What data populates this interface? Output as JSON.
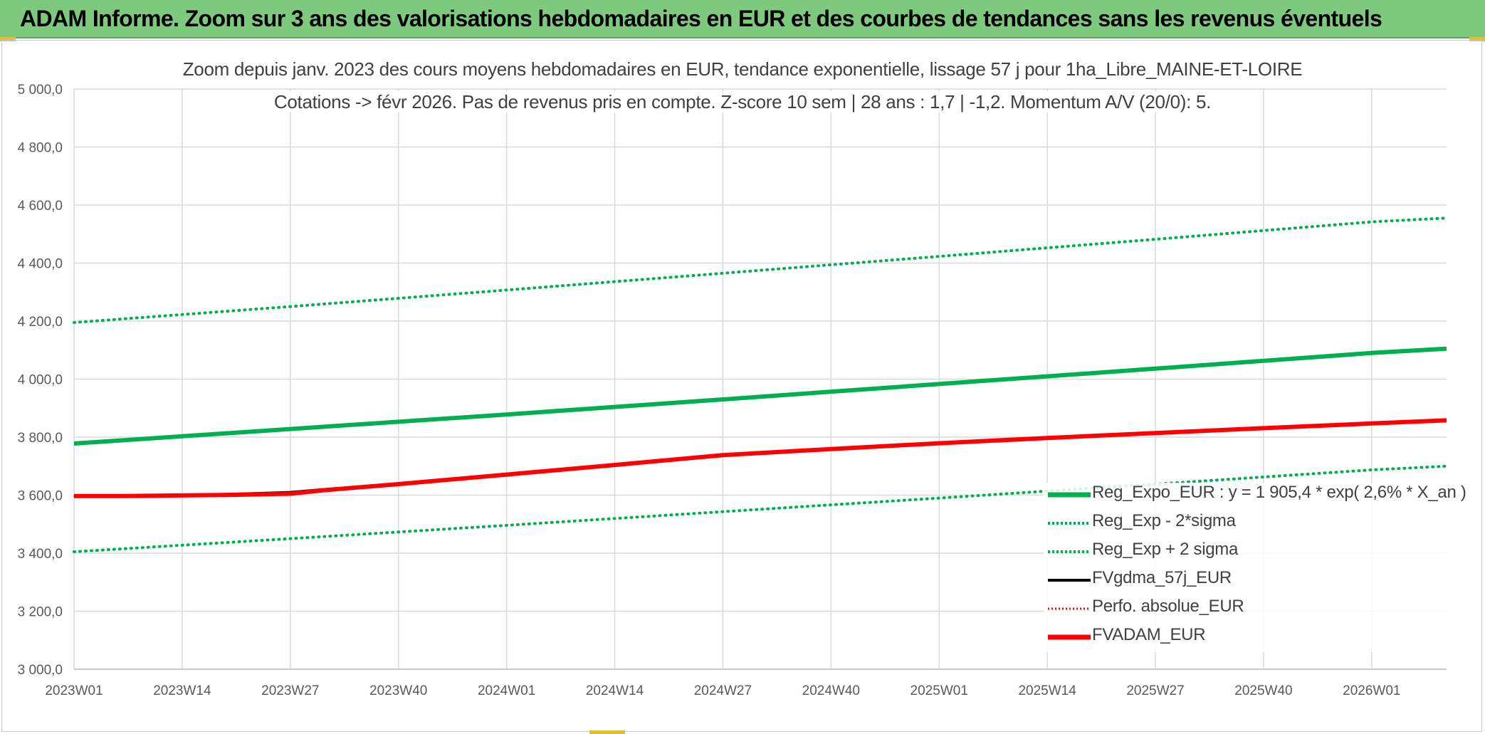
{
  "header": {
    "title": "ADAM Informe. Zoom sur 3 ans des valorisations hebdomadaires en EUR et des courbes de tendances sans les revenus éventuels"
  },
  "chart_data": {
    "type": "line",
    "title_line1": "Zoom depuis janv. 2023 des cours moyens hebdomadaires en EUR, tendance exponentielle, lissage 57 j pour 1ha_Libre_MAINE-ET-LOIRE",
    "title_line2": "Cotations -> févr 2026. Pas de revenus pris en compte. Z-score 10 sem | 28 ans : 1,7 | -1,2. Momentum A/V (20/0): 5.",
    "x_tick_labels": [
      "2023W01",
      "2023W14",
      "2023W27",
      "2023W40",
      "2024W01",
      "2024W14",
      "2024W27",
      "2024W40",
      "2025W01",
      "2025W14",
      "2025W27",
      "2025W40",
      "2026W01"
    ],
    "y_tick_labels": [
      "3 000,0",
      "3 200,0",
      "3 400,0",
      "3 600,0",
      "3 800,0",
      "4 000,0",
      "4 200,0",
      "4 400,0",
      "4 600,0",
      "4 800,0",
      "5 000,0"
    ],
    "ylim": [
      3000,
      5000
    ],
    "xlim_weeks": [
      0,
      165
    ],
    "grid": true,
    "legend_position": "bottom-right",
    "colors": {
      "green": "#00b050",
      "black": "#000000",
      "red": "#ff0000",
      "grid": "#d9d9d9",
      "banner": "#7dc97d"
    },
    "series": [
      {
        "name": "Reg_Expo_EUR : y = 1 905,4 * exp( 2,6% *  X_an )",
        "style": "solid-thick",
        "color": "#00b050",
        "x": [
          0,
          26,
          52,
          78,
          104,
          130,
          156,
          165
        ],
        "values": [
          3778,
          3828,
          3878,
          3930,
          3983,
          4036,
          4090,
          4105
        ]
      },
      {
        "name": "Reg_Exp - 2*sigma",
        "style": "dotted",
        "color": "#00b050",
        "x": [
          0,
          26,
          52,
          78,
          104,
          130,
          156,
          165
        ],
        "values": [
          3405,
          3450,
          3496,
          3543,
          3590,
          3638,
          3687,
          3700
        ]
      },
      {
        "name": "Reg_Exp + 2 sigma",
        "style": "dotted",
        "color": "#00b050",
        "x": [
          0,
          26,
          52,
          78,
          104,
          130,
          156,
          165
        ],
        "values": [
          4195,
          4250,
          4307,
          4365,
          4423,
          4482,
          4542,
          4555
        ]
      },
      {
        "name": "FVgdma_57j_EUR",
        "style": "solid",
        "color": "#000000",
        "x": [
          0,
          6,
          13,
          19,
          26,
          30,
          39,
          52,
          65,
          78,
          91,
          104,
          117,
          130,
          143,
          156,
          165
        ],
        "values": [
          3597,
          3598,
          3600,
          3604,
          3610,
          3620,
          3640,
          3672,
          3705,
          3740,
          3760,
          3780,
          3798,
          3815,
          3832,
          3848,
          3858
        ]
      },
      {
        "name": "Perfo. absolue_EUR",
        "style": "dotted",
        "color": "#ff0000",
        "x": [
          0,
          6,
          13,
          19,
          26,
          30,
          39,
          52,
          65,
          78,
          91,
          104,
          117,
          130,
          143,
          156,
          165
        ],
        "values": [
          3597,
          3597,
          3599,
          3601,
          3605,
          3617,
          3638,
          3671,
          3704,
          3738,
          3759,
          3779,
          3797,
          3814,
          3831,
          3847,
          3858
        ]
      },
      {
        "name": "FVADAM_EUR",
        "style": "solid-thick",
        "color": "#ff0000",
        "x": [
          0,
          6,
          13,
          19,
          26,
          30,
          39,
          52,
          65,
          78,
          91,
          104,
          117,
          130,
          143,
          156,
          165
        ],
        "values": [
          3597,
          3597,
          3599,
          3601,
          3605,
          3617,
          3638,
          3671,
          3704,
          3738,
          3759,
          3779,
          3797,
          3814,
          3831,
          3847,
          3858
        ]
      }
    ]
  }
}
